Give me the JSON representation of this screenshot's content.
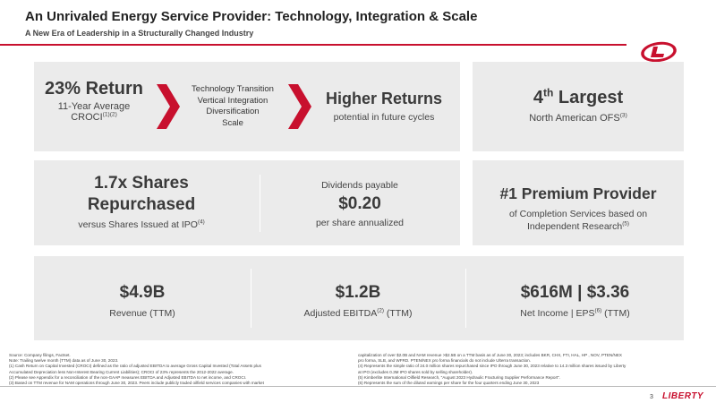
{
  "header": {
    "title": "An Unrivaled Energy Service Provider: Technology, Integration & Scale",
    "subtitle": "A New Era of Leadership in a Structurally Changed Industry"
  },
  "colors": {
    "accent": "#c8102e",
    "panel": "#ebebeb"
  },
  "row1": {
    "return_value": "23% Return",
    "return_sub": "11-Year Average",
    "return_sub2": "CROCI",
    "return_note": "(1)(2)",
    "drivers": [
      "Technology Transition",
      "Vertical Integration",
      "Diversification",
      "Scale"
    ],
    "higher_title": "Higher Returns",
    "higher_sub": "potential in future cycles",
    "rank_num": "4",
    "rank_suffix": "th",
    "rank_word": "Largest",
    "rank_sub": "North American OFS",
    "rank_note": "(3)"
  },
  "row2": {
    "shares_title1": "1.7x Shares",
    "shares_title2": "Repurchased",
    "shares_sub": "versus Shares Issued at IPO",
    "shares_note": "(4)",
    "div_label": "Dividends payable",
    "div_value": "$0.20",
    "div_sub": "per share annualized",
    "premium_title": "#1 Premium Provider",
    "premium_sub1": "of Completion Services based on",
    "premium_sub2": "Independent Research",
    "premium_note": "(5)"
  },
  "row3": {
    "rev_value": "$4.9B",
    "rev_label": "Revenue (TTM)",
    "ebitda_value": "$1.2B",
    "ebitda_label_a": "Adjusted EBITDA",
    "ebitda_note": "(2)",
    "ebitda_label_b": " (TTM)",
    "ni_value": "$616M | $3.36",
    "ni_label_a": "Net Income | EPS",
    "ni_note": "(6)",
    "ni_label_b": " (TTM)"
  },
  "footnotes_left": [
    "Source: Company filings, Factset.",
    "Note: Trailing twelve month (TTM) data as of June 30, 2023.",
    "(1)     Cash Return on Capital Invested (CROCI) defined as the ratio of adjusted EBITDA to average Gross Capital Invested (Total Assets plus",
    "          Accumulated Depreciation less Non-Interest Bearing Current Liabilities); CROCI of 23% represents the 2012-2022 average.",
    "(2)     Please see Appendix for a reconciliation of the non-GAAP measures EBITDA and Adjusted EBITDA to net income, and CROCI.",
    "(3)     Based on TTM revenue for NAM operations through June 30, 2023. Peers include publicly traded oilfield services companies with market"
  ],
  "footnotes_right": [
    "capitalization of over $2.0B and NAM revenue >$2.5B on a TTM basis as of June 30, 2023; includes BKR, CHX, FTI, HAL, HP , NOV, PTEN/NEX",
    "pro forma, SLB, and WFRD.  PTEN/NEX pro forma financials do not include Ulterra transaction.",
    "(4)     Represents the simple ratio of 24.0 million shares repurchased since IPO through June 30, 2023 relative to 14.3 million shares issued by Liberty",
    "          at IPO (excludes 0.3M IPO shares sold by selling shareholder).",
    "(5)     Kimberlite International Oilfield Research, \"August 2023 Hydraulic Fracturing Supplier Performance Report\".",
    "(6)     Represents the sum of the diluted earnings per share for the four quarters ending June 30, 2023"
  ],
  "footer": {
    "page": "3",
    "brand": "LIBERTY"
  }
}
